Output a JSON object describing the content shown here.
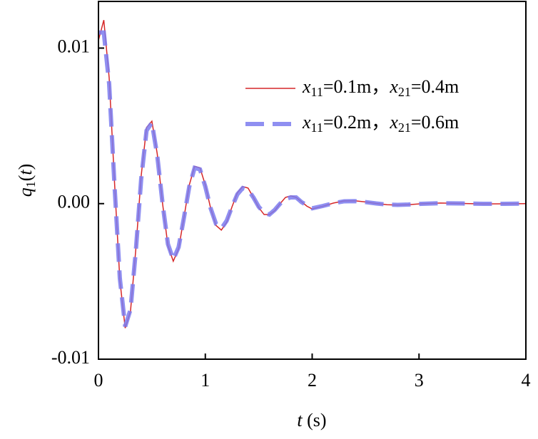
{
  "chart_data": {
    "type": "line",
    "xlabel": "t (s)",
    "ylabel": "q1(t)",
    "x": [
      0,
      0.05,
      0.1,
      0.15,
      0.2,
      0.25,
      0.3,
      0.35,
      0.4,
      0.45,
      0.5,
      0.55,
      0.6,
      0.65,
      0.7,
      0.75,
      0.8,
      0.85,
      0.9,
      0.95,
      1.0,
      1.05,
      1.1,
      1.15,
      1.2,
      1.25,
      1.3,
      1.35,
      1.4,
      1.45,
      1.5,
      1.55,
      1.6,
      1.65,
      1.7,
      1.75,
      1.8,
      1.85,
      1.9,
      1.95,
      2.0,
      2.1,
      2.2,
      2.3,
      2.4,
      2.5,
      2.6,
      2.7,
      2.8,
      2.9,
      3.0,
      3.2,
      3.4,
      3.6,
      3.8,
      4.0
    ],
    "series": [
      {
        "name": "x11=0.1m，x21=0.4m",
        "color": "#d62728",
        "dashed": false,
        "values": [
          0.0105,
          0.0118,
          0.0081,
          0.0014,
          -0.0049,
          -0.008,
          -0.0069,
          -0.0029,
          0.0018,
          0.0049,
          0.0053,
          0.0032,
          0.0,
          -0.0027,
          -0.0037,
          -0.0029,
          -0.0009,
          0.0012,
          0.0024,
          0.0023,
          0.0012,
          -0.0003,
          -0.0014,
          -0.0017,
          -0.0012,
          -0.0002,
          0.0007,
          0.0011,
          0.001,
          0.0004,
          -0.00025,
          -0.0007,
          -0.0007,
          -0.00045,
          0.0,
          0.0004,
          0.0005,
          0.0004,
          0.00013,
          -0.00016,
          -0.00034,
          -0.00017,
          4e-05,
          0.00017,
          0.00018,
          0.00011,
          1e-05,
          -7e-05,
          -9e-05,
          -7e-05,
          -2e-05,
          4e-05,
          1e-05,
          -2e-05,
          -1e-05,
          0.0
        ]
      },
      {
        "name": "x11=0.2m，x21=0.6m",
        "color": "#7b7bef",
        "dashed": true,
        "values": [
          0.011,
          0.011,
          0.0077,
          0.0012,
          -0.0048,
          -0.0079,
          -0.0068,
          -0.003,
          0.0016,
          0.0047,
          0.0052,
          0.0031,
          0.0,
          -0.0026,
          -0.0036,
          -0.0028,
          -0.0009,
          0.0011,
          0.0023,
          0.0022,
          0.0011,
          -0.0003,
          -0.0013,
          -0.0016,
          -0.0011,
          -0.0002,
          0.0006,
          0.001,
          0.0009,
          0.0004,
          -0.0002,
          -0.0006,
          -0.0007,
          -0.0004,
          0.0,
          0.0003,
          0.0004,
          0.0004,
          0.0001,
          -0.0001,
          -0.0003,
          -0.00015,
          3e-05,
          0.00015,
          0.00016,
          0.0001,
          1e-05,
          -6e-05,
          -8e-05,
          -6e-05,
          -2e-05,
          3e-05,
          1e-05,
          -1e-05,
          -1e-05,
          0.0
        ]
      }
    ],
    "xlim": [
      0,
      4
    ],
    "xticks": [
      0,
      1,
      2,
      3,
      4
    ],
    "ylim": [
      -0.01,
      0.013
    ],
    "yticks": [
      -0.01,
      {
        "value": 0,
        "label": "0.00"
      },
      0.01
    ],
    "grid": false,
    "legend": "upper right"
  }
}
